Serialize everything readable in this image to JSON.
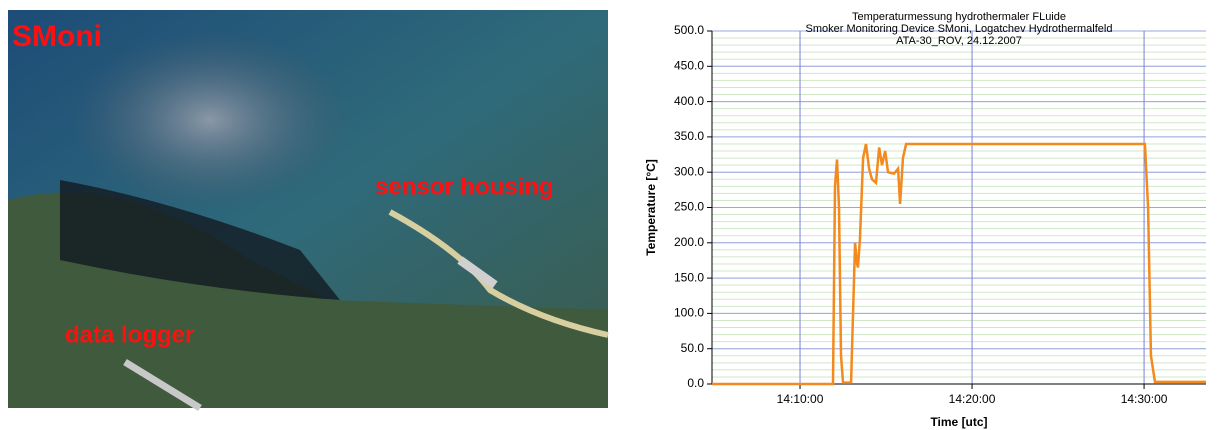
{
  "photo": {
    "labels": [
      "SMoni",
      "sensor housing",
      "data logger"
    ]
  },
  "chart_data": {
    "type": "line",
    "title": [
      "Temperaturmessung hydrothermaler FLuide",
      "Smoker Monitoring Device SMoni, Logatchev Hydrothermalfeld",
      "ATA-30_ROV, 24.12.2007"
    ],
    "x_label": "Time [utc]",
    "y_label": "Temperature [°C]",
    "x": [
      "14:04:53",
      "14:11:55",
      "14:12:02",
      "14:12:09",
      "14:12:16",
      "14:12:23",
      "14:12:30",
      "14:12:58",
      "14:13:12",
      "14:13:19",
      "14:13:22",
      "14:13:29",
      "14:13:40",
      "14:13:50",
      "14:14:01",
      "14:14:11",
      "14:14:25",
      "14:14:36",
      "14:14:46",
      "14:14:57",
      "14:15:07",
      "14:15:28",
      "14:15:42",
      "14:15:49",
      "14:15:59",
      "14:16:10",
      "14:30:03",
      "14:30:14",
      "14:30:24",
      "14:30:38",
      "14:33:36"
    ],
    "series": [
      {
        "name": "Temperature",
        "color": "#f28a1e",
        "values": [
          0,
          0,
          280,
          318,
          250,
          40,
          2,
          2,
          200,
          170,
          165,
          205,
          320,
          340,
          305,
          290,
          285,
          335,
          310,
          330,
          300,
          298,
          305,
          255,
          320,
          340,
          340,
          250,
          40,
          3,
          3
        ]
      }
    ],
    "xlim": [
      "14:04:53",
      "14:33:36"
    ],
    "xticks": [
      "14:10:00",
      "14:20:00",
      "14:30:00"
    ],
    "ylim": [
      0,
      500
    ],
    "yticks": [
      {
        "value": 0,
        "label": "0.0"
      },
      {
        "value": 50,
        "label": "50.0"
      },
      {
        "value": 100,
        "label": "100.0"
      },
      {
        "value": 150,
        "label": "150.0"
      },
      {
        "value": 200,
        "label": "200.0"
      },
      {
        "value": 250,
        "label": "250.0"
      },
      {
        "value": 300,
        "label": "300.0"
      },
      {
        "value": 350,
        "label": "350.0"
      },
      {
        "value": 400,
        "label": "400.0"
      },
      {
        "value": 450,
        "label": "450.0"
      },
      {
        "value": 500,
        "label": "500.0"
      }
    ],
    "grid": true
  }
}
